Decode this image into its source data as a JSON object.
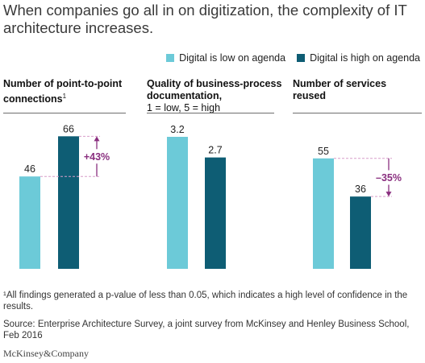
{
  "title": "When companies go all in on digitization, the complexity of IT architecture increases.",
  "colors": {
    "low": "#6ccad8",
    "high": "#0e5d74",
    "accent": "#8a2f7f"
  },
  "footnote": "¹All findings generated a p-value of less than 0.05, which indicates a high level of confidence in the results.",
  "source": "Source: Enterprise Architecture Survey, a joint survey from McKinsey and Henley Business School, Feb 2016",
  "logo": "McKinsey&Company",
  "chart_data": [
    {
      "type": "bar",
      "title": "Number of point-to-point connections",
      "title_footnote_mark": "1",
      "series": [
        {
          "name": "Digital is low on agenda",
          "values": [
            46
          ]
        },
        {
          "name": "Digital is high on agenda",
          "values": [
            66
          ]
        }
      ],
      "data_labels": [
        "46",
        "66"
      ],
      "annotation": "+43%",
      "ylim": [
        0,
        100
      ]
    },
    {
      "type": "bar",
      "title": "Quality of business-process documentation,",
      "subtitle": "1 = low, 5 = high",
      "series": [
        {
          "name": "Digital is low on agenda",
          "values": [
            3.2
          ]
        },
        {
          "name": "Digital is high on agenda",
          "values": [
            2.7
          ]
        }
      ],
      "data_labels": [
        "3.2",
        "2.7"
      ],
      "ylim": [
        0,
        5
      ]
    },
    {
      "type": "bar",
      "title": "Number of services reused",
      "series": [
        {
          "name": "Digital is low on agenda",
          "values": [
            55
          ]
        },
        {
          "name": "Digital is high on agenda",
          "values": [
            36
          ]
        }
      ],
      "data_labels": [
        "55",
        "36"
      ],
      "annotation": "–35%",
      "ylim": [
        0,
        100
      ]
    }
  ],
  "legend": {
    "position": "top-right",
    "items": [
      "Digital is low on agenda",
      "Digital is high on agenda"
    ]
  }
}
